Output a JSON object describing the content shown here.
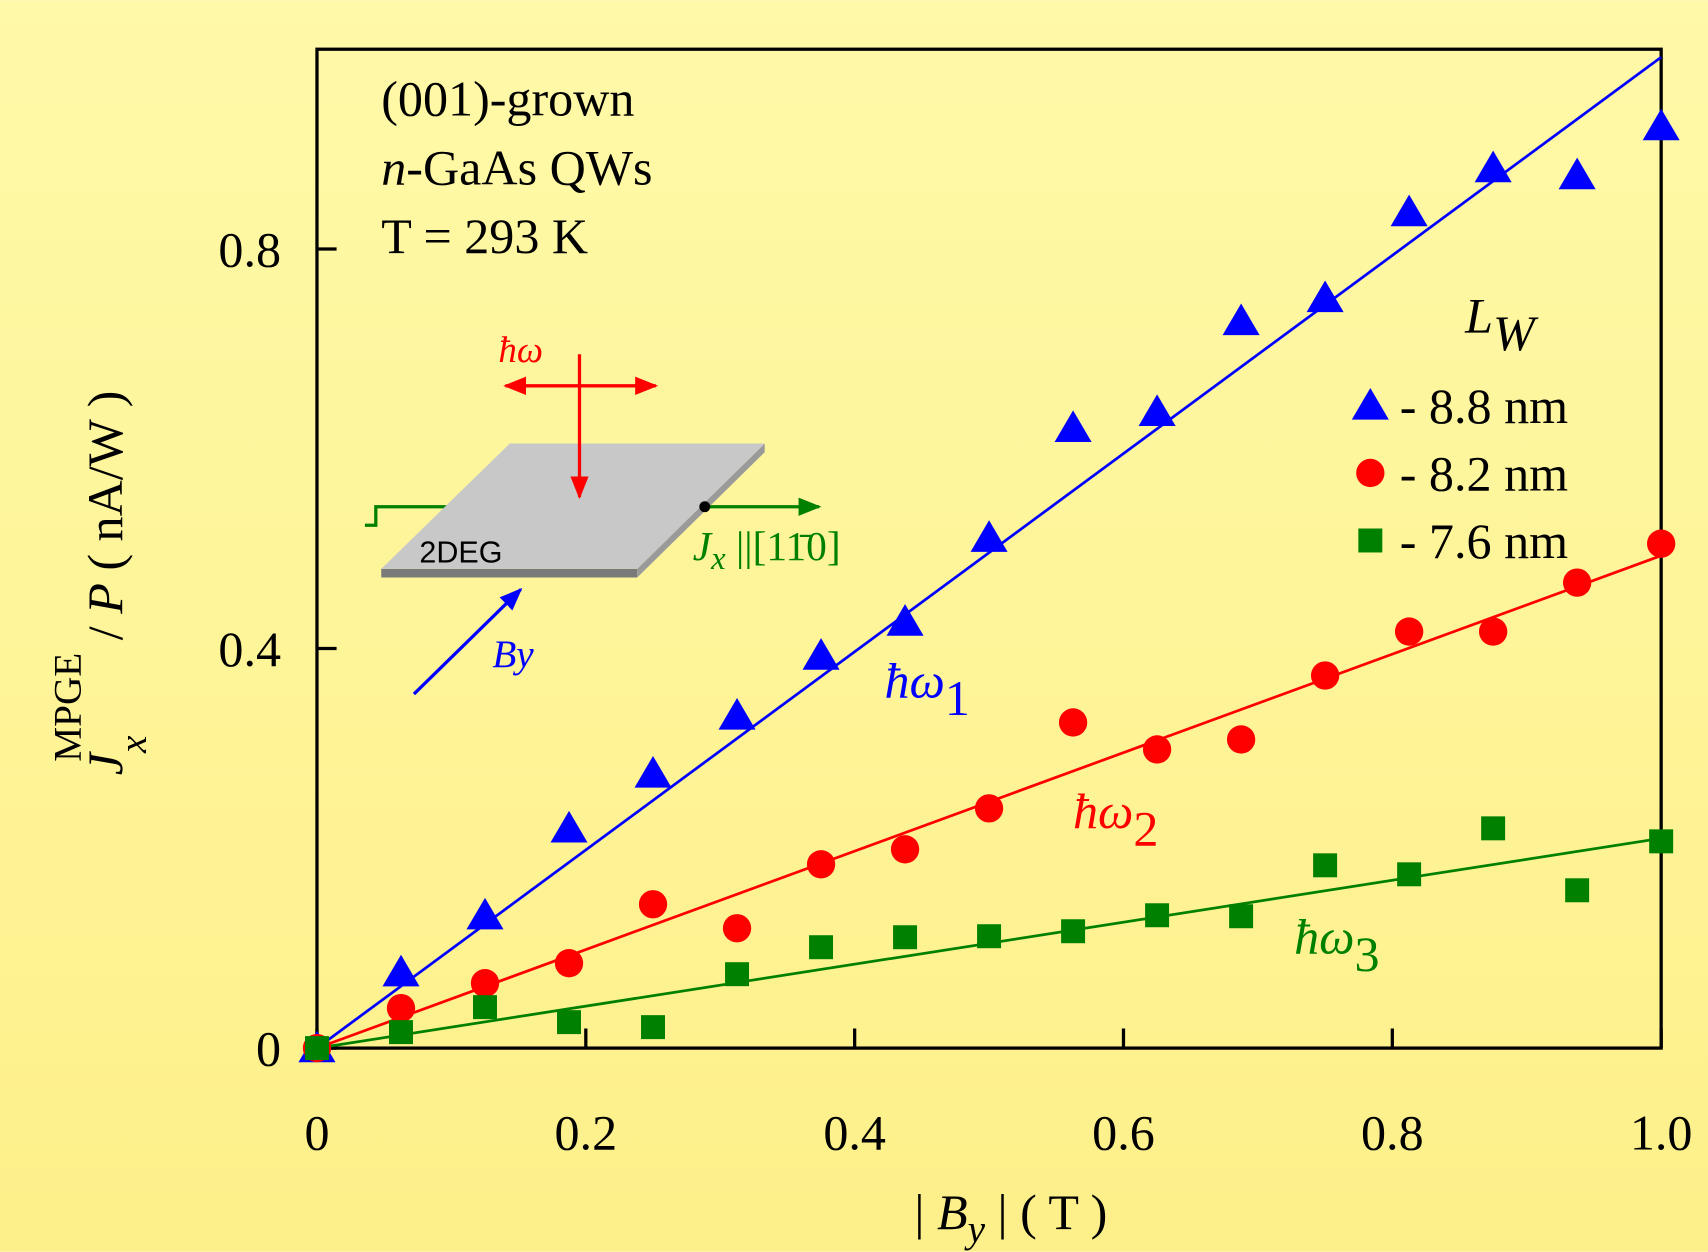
{
  "chart_data": {
    "type": "scatter",
    "xlabel": [
      "| ",
      "B",
      "y",
      " | ( T )"
    ],
    "ylabel": [
      "J",
      "x",
      "MPGE",
      " / ",
      "P",
      " ( nA/W )"
    ],
    "annotations": [
      "(001)-grown",
      [
        "n",
        "-GaAs QWs"
      ],
      "T = 293 K"
    ],
    "legend_title": [
      "L",
      "W"
    ],
    "inset": {
      "photon": "ħω",
      "sample": "2DEG",
      "current": [
        "J",
        "x",
        " ||[11̄0]"
      ],
      "field": "By"
    },
    "xlim": [
      0,
      1
    ],
    "ylim": [
      0,
      1
    ],
    "xticks": [
      0,
      0.2,
      0.4,
      0.6,
      0.8,
      {
        "value": 1,
        "label": "1.0"
      }
    ],
    "yticks": [
      0,
      0.4,
      0.8
    ],
    "x": [
      0,
      0.0625,
      0.125,
      0.1875,
      0.25,
      0.3125,
      0.375,
      0.4375,
      0.5,
      0.5625,
      0.625,
      0.6875,
      0.75,
      0.8125,
      0.875,
      0.9375,
      1
    ],
    "series": [
      {
        "name": "- 8.8 nm",
        "color": "#0000ff",
        "marker": "triangle",
        "label": [
          "ħω",
          "1"
        ],
        "values": [
          0,
          0.076,
          0.133,
          0.22,
          0.275,
          0.333,
          0.393,
          0.427,
          0.511,
          0.621,
          0.637,
          0.728,
          0.751,
          0.837,
          0.881,
          0.874,
          0.923
        ],
        "fit": {
          "x": [
            0,
            1
          ],
          "values": [
            0,
            0.992
          ]
        }
      },
      {
        "name": "- 8.2 nm",
        "color": "#ff0000",
        "marker": "circle",
        "label": [
          "ħω",
          "2"
        ],
        "values": [
          0,
          0.04,
          0.065,
          0.085,
          0.144,
          0.12,
          0.184,
          0.199,
          0.24,
          0.326,
          0.299,
          0.309,
          0.373,
          0.417,
          0.417,
          0.466,
          0.505
        ],
        "fit": {
          "x": [
            0,
            1
          ],
          "values": [
            0,
            0.493
          ]
        }
      },
      {
        "name": "- 7.6 nm",
        "color": "#008000",
        "marker": "square",
        "label": [
          "ħω",
          "3"
        ],
        "values": [
          0,
          0.016,
          0.041,
          0.026,
          0.021,
          0.074,
          0.101,
          0.111,
          0.112,
          0.117,
          0.133,
          0.132,
          0.183,
          0.174,
          0.22,
          0.158,
          0.207
        ],
        "fit": {
          "x": [
            0,
            1
          ],
          "values": [
            0,
            0.21
          ]
        }
      }
    ]
  }
}
